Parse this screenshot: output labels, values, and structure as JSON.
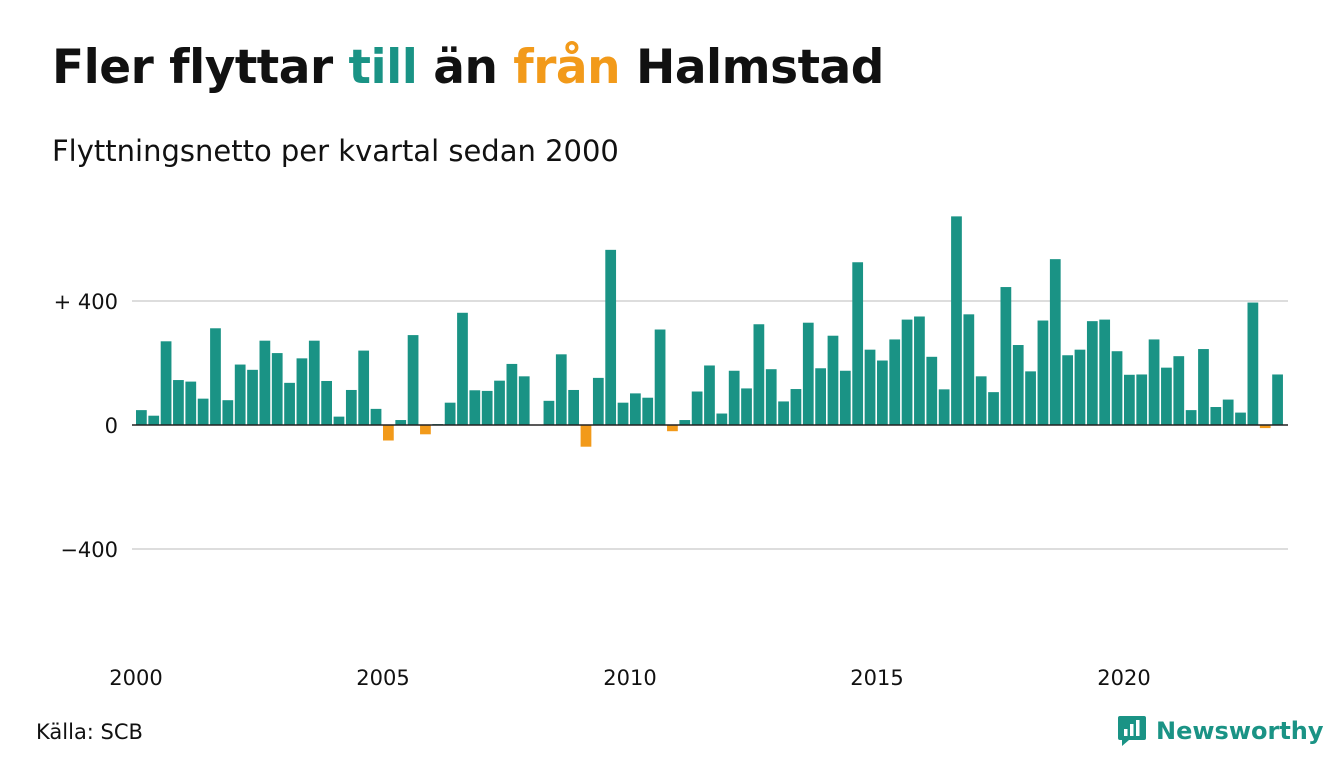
{
  "header": {
    "title_part1": "Fler flyttar",
    "title_part2": "till",
    "title_part3": "än",
    "title_part4": "från",
    "title_part5": "Halmstad",
    "subtitle": "Flyttningsnetto per kvartal sedan 2000"
  },
  "footer": {
    "source": "Källa: SCB",
    "brand": "Newsworthy"
  },
  "colors": {
    "positive": "#1a9385",
    "negative": "#f29a1a",
    "grid": "#dddddd",
    "baseline": "#222222"
  },
  "chart_data": {
    "type": "bar",
    "title": "Fler flyttar till än från Halmstad",
    "subtitle": "Flyttningsnetto per kvartal sedan 2000",
    "x_start": "2000 Q1",
    "frequency": "quarterly",
    "y_ticks": [
      {
        "value": 400,
        "label": "+ 400"
      },
      {
        "value": 0,
        "label": "0"
      },
      {
        "value": -400,
        "label": "−400"
      }
    ],
    "x_ticks": [
      {
        "value": 2000,
        "label": "2000"
      },
      {
        "value": 2005,
        "label": "2005"
      },
      {
        "value": 2010,
        "label": "2010"
      },
      {
        "value": 2015,
        "label": "2015"
      },
      {
        "value": 2020,
        "label": "2020"
      }
    ],
    "ylim": [
      -600,
      700
    ],
    "grid": true,
    "values": [
      48,
      30,
      270,
      145,
      140,
      85,
      312,
      80,
      195,
      178,
      272,
      232,
      136,
      215,
      272,
      142,
      27,
      113,
      240,
      52,
      -50,
      16,
      290,
      -30,
      3,
      72,
      362,
      112,
      110,
      143,
      197,
      157,
      0,
      78,
      228,
      113,
      -70,
      152,
      565,
      72,
      102,
      88,
      308,
      -20,
      16,
      108,
      192,
      37,
      175,
      118,
      325,
      180,
      76,
      116,
      330,
      183,
      288,
      175,
      525,
      243,
      208,
      276,
      340,
      350,
      220,
      115,
      673,
      357,
      157,
      106,
      445,
      258,
      173,
      337,
      535,
      225,
      243,
      335,
      340,
      238,
      162,
      163,
      276,
      185,
      222,
      48,
      245,
      58,
      82,
      40,
      395,
      -10,
      163
    ]
  }
}
